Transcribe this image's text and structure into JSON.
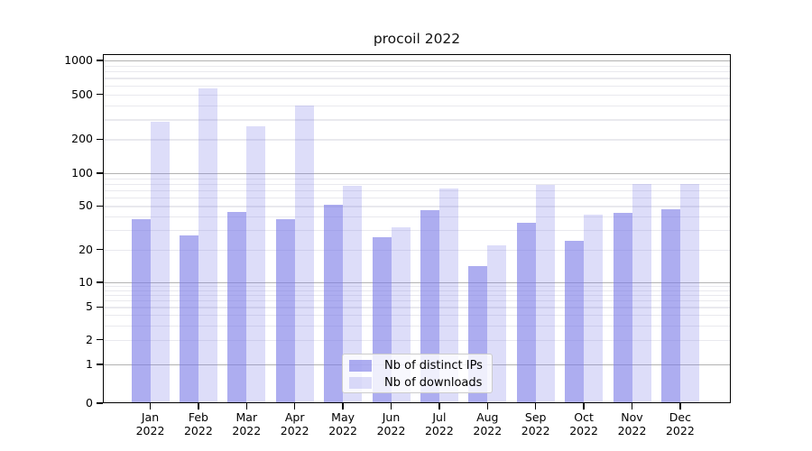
{
  "chart_data": {
    "type": "bar",
    "title": "procoil 2022",
    "x_categories": [
      "Jan",
      "Feb",
      "Mar",
      "Apr",
      "May",
      "Jun",
      "Jul",
      "Aug",
      "Sep",
      "Oct",
      "Nov",
      "Dec"
    ],
    "x_sub_label": "2022",
    "y_ticks": [
      1000,
      500,
      200,
      100,
      50,
      20,
      10,
      5,
      2,
      1,
      0
    ],
    "y_scale": "log-like (log decades with 0 baseline)",
    "grid": true,
    "legend": {
      "position": "lower center",
      "entries": [
        "Nb of distinct IPs",
        "Nb of downloads"
      ]
    },
    "series": [
      {
        "name": "Nb of distinct IPs",
        "color": "#7777e6",
        "alpha": 0.6,
        "values": [
          38,
          27,
          44,
          38,
          51,
          26,
          46,
          14,
          35,
          24,
          43,
          47
        ]
      },
      {
        "name": "Nb of downloads",
        "color": "#7777e6",
        "alpha": 0.25,
        "values": [
          286,
          565,
          262,
          400,
          76,
          32,
          73,
          22,
          78,
          42,
          79,
          80
        ]
      }
    ]
  }
}
